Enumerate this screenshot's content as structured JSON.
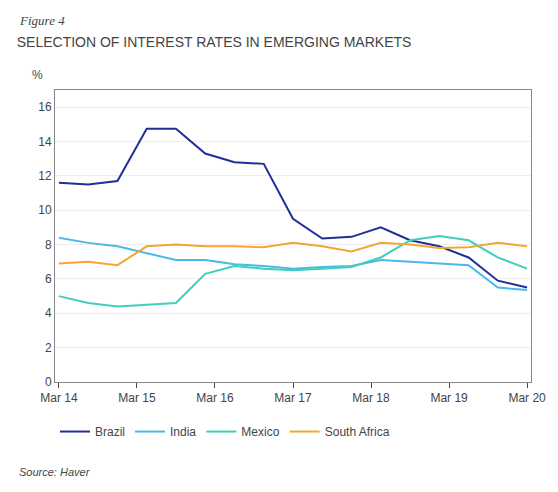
{
  "chart_data": {
    "type": "line",
    "title": "SELECTION OF INTEREST RATES IN EMERGING MARKETS",
    "ylabel": "%",
    "annotations": [
      "Figure 4",
      "Source: Haver"
    ],
    "x": [
      0,
      0.375,
      0.75,
      1.125,
      1.5,
      1.875,
      2.25,
      2.625,
      3,
      3.375,
      3.75,
      4.125,
      4.5,
      4.875,
      5.25,
      5.625,
      6
    ],
    "xlim": [
      -0.05,
      6.05
    ],
    "xticks": [
      {
        "value": 0,
        "label": "Mar 14"
      },
      {
        "value": 1,
        "label": "Mar 15"
      },
      {
        "value": 2,
        "label": "Mar 16"
      },
      {
        "value": 3,
        "label": "Mar 17"
      },
      {
        "value": 4,
        "label": "Mar 18"
      },
      {
        "value": 5,
        "label": "Mar 19"
      },
      {
        "value": 6,
        "label": "Mar 20"
      }
    ],
    "ylim": [
      0,
      17
    ],
    "yticks": [
      0,
      2,
      4,
      6,
      8,
      10,
      12,
      14,
      16
    ],
    "grid": true,
    "legend": "bottom",
    "series": [
      {
        "name": "Brazil",
        "color": "#1f2f99",
        "values": [
          11.6,
          11.5,
          11.7,
          14.75,
          14.75,
          13.3,
          12.8,
          12.7,
          9.5,
          8.35,
          8.45,
          9.0,
          8.25,
          7.9,
          7.25,
          5.9,
          5.5
        ]
      },
      {
        "name": "India",
        "color": "#4ab8e8",
        "values": [
          8.4,
          8.1,
          7.9,
          7.5,
          7.1,
          7.1,
          6.85,
          6.75,
          6.6,
          6.7,
          6.75,
          7.1,
          7.0,
          6.9,
          6.8,
          5.5,
          5.35
        ]
      },
      {
        "name": "Mexico",
        "color": "#3ecfbd",
        "values": [
          5.0,
          4.6,
          4.4,
          4.5,
          4.6,
          6.3,
          6.75,
          6.6,
          6.5,
          6.6,
          6.7,
          7.25,
          8.25,
          8.5,
          8.25,
          7.25,
          6.6
        ]
      },
      {
        "name": "South Africa",
        "color": "#f0a830",
        "values": [
          6.9,
          7.0,
          6.8,
          7.9,
          8.0,
          7.9,
          7.9,
          7.85,
          8.1,
          7.9,
          7.6,
          8.1,
          8.0,
          7.8,
          7.85,
          8.1,
          7.9
        ]
      }
    ]
  }
}
